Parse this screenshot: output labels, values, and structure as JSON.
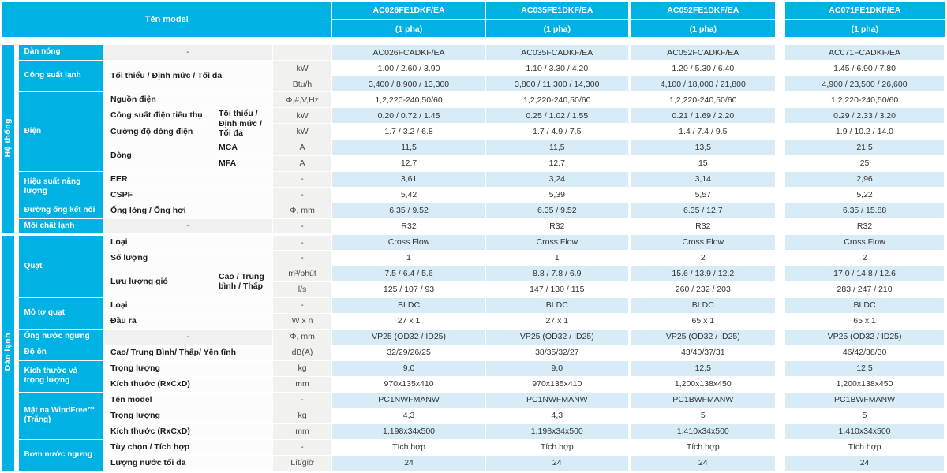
{
  "header": {
    "title": "Tên model"
  },
  "models": [
    {
      "name": "AC026FE1DKF/EA",
      "phase": "(1 pha)"
    },
    {
      "name": "AC035FE1DKF/EA",
      "phase": "(1 pha)"
    },
    {
      "name": "AC052FE1DKF/EA",
      "phase": "(1 pha)"
    },
    {
      "name": "AC071FE1DKF/EA",
      "phase": "(1 pha)"
    }
  ],
  "sections": [
    {
      "label": "Hệ thống",
      "rows": 12
    },
    {
      "label": "Dàn lạnh",
      "rows": 15
    }
  ],
  "colors": {
    "accent": "#00b2e3",
    "stripe": "#d8ecf8",
    "unit_bg": "#f1f1f0"
  },
  "rows": [
    {
      "group": {
        "label": "Dàn nóng",
        "rowspan": 1
      },
      "subs": [
        {
          "text": "-",
          "colspan": 2,
          "center": true
        }
      ],
      "unit": "",
      "values": [
        "AC026FCADKF/EA",
        "AC035FCADKF/EA",
        "AC052FCADKF/EA",
        "AC071FCADKF/EA"
      ]
    },
    {
      "group": {
        "label": "Công suất lạnh",
        "rowspan": 2
      },
      "subs": [
        {
          "text": "Tối thiểu / Định mức / Tối đa",
          "colspan": 2,
          "rowspan": 2
        }
      ],
      "unit": "kW",
      "values": [
        "1.00 / 2.60 / 3.90",
        "1.10 / 3.30 / 4.20",
        "1.20 / 5.30 / 6.40",
        "1.45 / 6.90 / 7.80"
      ]
    },
    {
      "subs": [],
      "unit": "Btu/h",
      "values": [
        "3,400 / 8,900 / 13,300",
        "3,800 / 11,300 / 14,300",
        "4,100 / 18,000 / 21,800",
        "4,900 / 23,500 / 26,600"
      ]
    },
    {
      "group": {
        "label": "Điện",
        "rowspan": 5
      },
      "subs": [
        {
          "text": "Nguồn điện",
          "colspan": 2
        }
      ],
      "unit": "Φ,#,V,Hz",
      "values": [
        "1,2,220-240,50/60",
        "1,2,220-240,50/60",
        "1,2,220-240,50/60",
        "1,2,220-240,50/60"
      ]
    },
    {
      "subs": [
        {
          "text": "Công suất điện tiêu thụ",
          "colspan": 1
        },
        {
          "text": "Tối thiểu / Định mức / Tối đa",
          "colspan": 1,
          "rowspan": 2
        }
      ],
      "unit": "kW",
      "values": [
        "0.20 / 0.72 / 1.45",
        "0.25 / 1.02 / 1.55",
        "0.21 / 1.69 / 2.20",
        "0.29 / 2.33 / 3.20"
      ]
    },
    {
      "subs": [
        {
          "text": "Cường độ dòng điện",
          "colspan": 1
        }
      ],
      "unit": "kW",
      "values": [
        "1.7 / 3.2 / 6.8",
        "1.7 / 4.9 / 7.5",
        "1.4 / 7.4 / 9.5",
        "1.9 / 10.2 / 14.0"
      ]
    },
    {
      "subs": [
        {
          "text": "Dòng",
          "colspan": 1,
          "rowspan": 2
        },
        {
          "text": "MCA",
          "colspan": 1
        }
      ],
      "unit": "A",
      "values": [
        "11,5",
        "11,5",
        "13,5",
        "21,5"
      ]
    },
    {
      "subs": [
        {
          "text": "MFA",
          "colspan": 1
        }
      ],
      "unit": "A",
      "values": [
        "12,7",
        "12,7",
        "15",
        "25"
      ]
    },
    {
      "group": {
        "label": "Hiệu suất năng lượng",
        "rowspan": 2
      },
      "subs": [
        {
          "text": "EER",
          "colspan": 2
        }
      ],
      "unit": "-",
      "values": [
        "3,61",
        "3,24",
        "3,14",
        "2,96"
      ]
    },
    {
      "subs": [
        {
          "text": "CSPF",
          "colspan": 2
        }
      ],
      "unit": "-",
      "values": [
        "5,42",
        "5,39",
        "5,57",
        "5,22"
      ]
    },
    {
      "group": {
        "label": "Đường ống kết nối",
        "rowspan": 1
      },
      "subs": [
        {
          "text": "Ống lỏng / Ống hơi",
          "colspan": 2
        }
      ],
      "unit": "Φ, mm",
      "values": [
        "6.35 / 9.52",
        "6.35 / 9.52",
        "6.35 / 12.7",
        "6.35 / 15.88"
      ]
    },
    {
      "group": {
        "label": "Môi chất lạnh",
        "rowspan": 1
      },
      "subs": [
        {
          "text": "-",
          "colspan": 2,
          "center": true
        }
      ],
      "unit": "-",
      "values": [
        "R32",
        "R32",
        "R32",
        "R32"
      ]
    },
    {
      "group": {
        "label": "Quạt",
        "rowspan": 4
      },
      "subs": [
        {
          "text": "Loại",
          "colspan": 2
        }
      ],
      "unit": "-",
      "values": [
        "Cross Flow",
        "Cross Flow",
        "Cross Flow",
        "Cross Flow"
      ]
    },
    {
      "subs": [
        {
          "text": "Số lượng",
          "colspan": 2
        }
      ],
      "unit": "-",
      "values": [
        "1",
        "1",
        "2",
        "2"
      ]
    },
    {
      "subs": [
        {
          "text": "Lưu lượng gió",
          "colspan": 1,
          "rowspan": 2
        },
        {
          "text": "Cao / Trung bình / Thấp",
          "colspan": 1,
          "rowspan": 2
        }
      ],
      "unit": "m³/phút",
      "values": [
        "7.5 / 6.4 / 5.6",
        "8.8 / 7.8 / 6.9",
        "15.6 / 13.9 / 12.2",
        "17.0 / 14.8 / 12.6"
      ]
    },
    {
      "subs": [],
      "unit": "l/s",
      "values": [
        "125 / 107 / 93",
        "147 / 130 / 115",
        "260 / 232 / 203",
        "283 / 247 / 210"
      ]
    },
    {
      "group": {
        "label": "Mô tơ quạt",
        "rowspan": 2
      },
      "subs": [
        {
          "text": "Loại",
          "colspan": 2
        }
      ],
      "unit": "-",
      "values": [
        "BLDC",
        "BLDC",
        "BLDC",
        "BLDC"
      ]
    },
    {
      "subs": [
        {
          "text": "Đầu ra",
          "colspan": 2
        }
      ],
      "unit": "W x n",
      "values": [
        "27 x 1",
        "27 x 1",
        "65 x 1",
        "65 x 1"
      ]
    },
    {
      "group": {
        "label": "Ống nước ngưng",
        "rowspan": 1
      },
      "subs": [
        {
          "text": "-",
          "colspan": 2,
          "center": true
        }
      ],
      "unit": "Φ, mm",
      "values": [
        "VP25 (OD32 / ID25)",
        "VP25 (OD32 / ID25)",
        "VP25 (OD32 / ID25)",
        "VP25 (OD32 / ID25)"
      ]
    },
    {
      "group": {
        "label": "Độ ồn",
        "rowspan": 1
      },
      "subs": [
        {
          "text": "Cao/ Trung Bình/ Thấp/ Yên tĩnh",
          "colspan": 2
        }
      ],
      "unit": "dB(A)",
      "values": [
        "32/29/26/25",
        "38/35/32/27",
        "43/40/37/31",
        "46/42/38/30"
      ]
    },
    {
      "group": {
        "label": "Kích thước và trọng lượng",
        "rowspan": 2
      },
      "subs": [
        {
          "text": "Trọng lượng",
          "colspan": 2
        }
      ],
      "unit": "kg",
      "values": [
        "9,0",
        "9,0",
        "12,5",
        "12,5"
      ]
    },
    {
      "subs": [
        {
          "text": "Kích thước (RxCxD)",
          "colspan": 2
        }
      ],
      "unit": "mm",
      "values": [
        "970x135x410",
        "970x135x410",
        "1,200x138x450",
        "1,200x138x450"
      ]
    },
    {
      "group": {
        "label": "Mặt nạ WindFree™ (Trắng)",
        "rowspan": 3
      },
      "subs": [
        {
          "text": "Tên model",
          "colspan": 2
        }
      ],
      "unit": "-",
      "values": [
        "PC1NWFMANW",
        "PC1NWFMANW",
        "PC1BWFMANW",
        "PC1BWFMANW"
      ]
    },
    {
      "subs": [
        {
          "text": "Trọng lượng",
          "colspan": 2
        }
      ],
      "unit": "kg",
      "values": [
        "4,3",
        "4,3",
        "5",
        "5"
      ]
    },
    {
      "subs": [
        {
          "text": "Kích thước (RxCxD)",
          "colspan": 2
        }
      ],
      "unit": "mm",
      "values": [
        "1,198x34x500",
        "1,198x34x500",
        "1,410x34x500",
        "1,410x34x500"
      ]
    },
    {
      "group": {
        "label": "Bơm nước ngưng",
        "rowspan": 2
      },
      "subs": [
        {
          "text": "Tùy chọn / Tích hợp",
          "colspan": 2
        }
      ],
      "unit": "-",
      "values": [
        "Tích hợp",
        "Tích hợp",
        "Tích hợp",
        "Tích hợp"
      ]
    },
    {
      "subs": [
        {
          "text": "Lượng nước tối đa",
          "colspan": 2
        }
      ],
      "unit": "Lít/giờ",
      "values": [
        "24",
        "24",
        "24",
        "24"
      ]
    }
  ]
}
